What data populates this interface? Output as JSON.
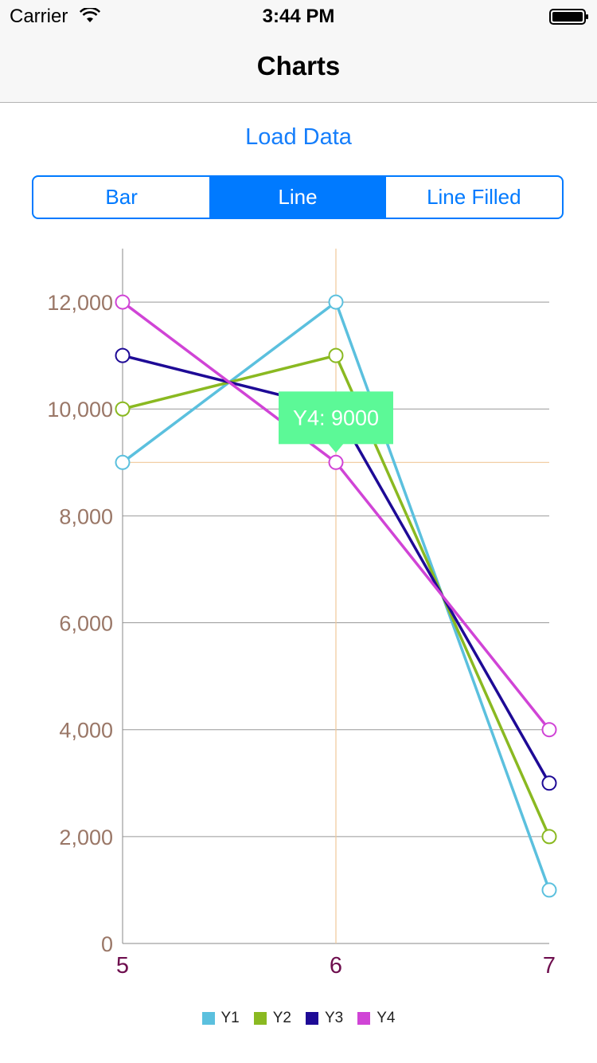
{
  "status_bar": {
    "carrier": "Carrier",
    "time": "3:44 PM"
  },
  "nav": {
    "title": "Charts"
  },
  "actions": {
    "load_data": "Load Data"
  },
  "segments": {
    "items": [
      "Bar",
      "Line",
      "Line Filled"
    ],
    "selected": "Line"
  },
  "colors": {
    "accent": "#007aff",
    "y_label": "#9a7767",
    "x_label": "#6e0e4e",
    "grid": "#999999",
    "highlight_line": "#f0c89a",
    "tooltip_bg": "#5cf997",
    "tooltip_text": "#ffffff"
  },
  "tooltip": {
    "text": "Y4: 9000"
  },
  "chart_data": {
    "type": "line",
    "x": [
      5,
      6,
      7
    ],
    "xlabels": [
      "5",
      "6",
      "7"
    ],
    "ylim": [
      0,
      13000
    ],
    "yticks": [
      0,
      2000,
      4000,
      6000,
      8000,
      10000,
      12000
    ],
    "ytick_labels": [
      "0",
      "2,000",
      "4,000",
      "6,000",
      "8,000",
      "10,000",
      "12,000"
    ],
    "grid": true,
    "legend": "bottom-center",
    "highlight": {
      "series": "Y4",
      "x": 6,
      "y": 9000
    },
    "series": [
      {
        "name": "Y1",
        "color": "#5bc0de",
        "values": [
          9000,
          12000,
          1000
        ]
      },
      {
        "name": "Y2",
        "color": "#8ab921",
        "values": [
          10000,
          11000,
          2000
        ]
      },
      {
        "name": "Y3",
        "color": "#1e0a96",
        "values": [
          11000,
          10000,
          3000
        ]
      },
      {
        "name": "Y4",
        "color": "#d044d6",
        "values": [
          12000,
          9000,
          4000
        ]
      }
    ]
  }
}
